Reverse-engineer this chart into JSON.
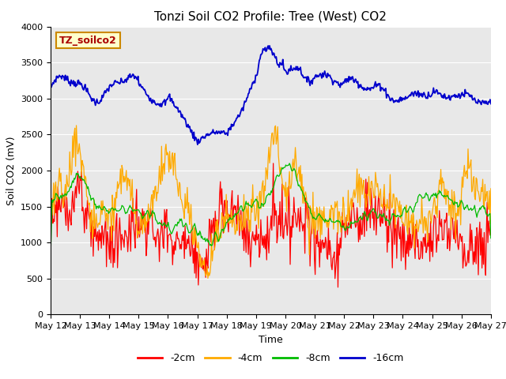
{
  "title": "Tonzi Soil CO2 Profile: Tree (West) CO2",
  "ylabel": "Soil CO2 (mV)",
  "xlabel": "Time",
  "legend_label": "TZ_soilco2",
  "ylim": [
    0,
    4000
  ],
  "series_labels": [
    "-2cm",
    "-4cm",
    "-8cm",
    "-16cm"
  ],
  "series_colors": [
    "#ff0000",
    "#ffaa00",
    "#00bb00",
    "#0000cc"
  ],
  "background_color": "#e8e8e8",
  "title_fontsize": 11,
  "axis_fontsize": 9,
  "tick_fontsize": 8,
  "legend_fontsize": 9,
  "date_start": 12,
  "date_end": 27,
  "month": "May",
  "figsize": [
    6.4,
    4.8
  ],
  "dpi": 100
}
